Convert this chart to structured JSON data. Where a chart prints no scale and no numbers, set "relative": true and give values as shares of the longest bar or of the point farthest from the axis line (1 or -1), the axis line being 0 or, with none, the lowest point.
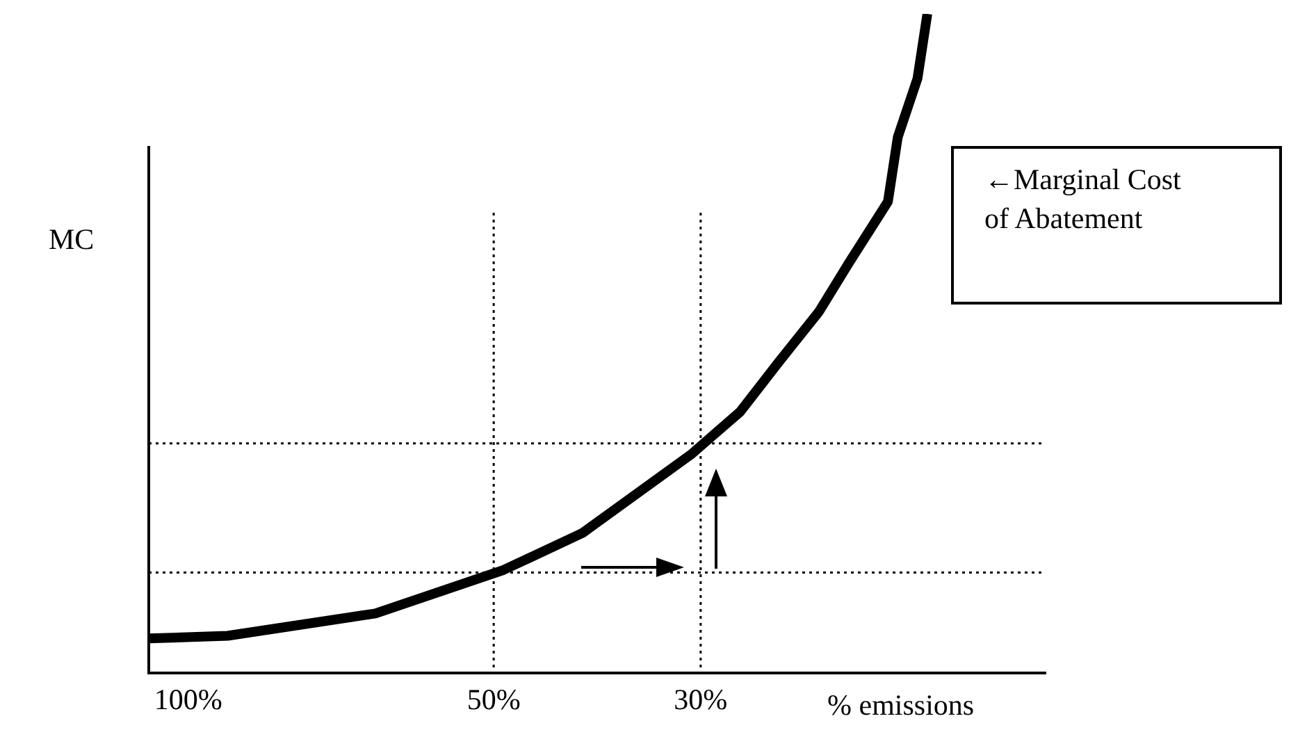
{
  "chart_data": {
    "type": "line",
    "relative": true,
    "ylabel": "MC",
    "xlabel": "% emissions",
    "annotations": [
      "←Marginal Cost of Abatement"
    ],
    "categories": [
      null,
      null,
      null,
      null,
      "100%",
      null,
      null,
      null,
      null,
      null,
      null,
      null,
      null,
      null,
      null,
      null,
      null,
      null,
      null,
      null,
      null,
      null,
      null,
      null,
      null,
      null,
      null,
      null,
      null,
      null,
      null,
      null,
      null,
      null,
      null,
      "50%",
      null,
      null,
      null,
      null,
      null,
      null,
      null,
      null,
      null,
      null,
      null,
      null,
      null,
      null,
      null,
      null,
      null,
      null,
      null,
      null,
      "30%",
      null,
      null,
      null,
      null,
      null,
      null,
      null,
      null,
      null,
      null,
      null,
      null,
      null,
      null,
      null,
      null,
      null,
      null,
      null,
      null,
      null,
      null,
      null,
      null,
      null,
      null,
      null,
      null,
      null,
      null,
      null,
      null,
      null,
      null,
      null
    ],
    "series": [
      {
        "color": "#000000",
        "values": [
          0.052,
          null,
          null,
          null,
          null,
          null,
          null,
          null,
          0.056,
          null,
          null,
          null,
          null,
          null,
          null,
          null,
          null,
          null,
          null,
          null,
          null,
          null,
          null,
          0.09,
          null,
          null,
          null,
          null,
          null,
          null,
          null,
          null,
          null,
          null,
          null,
          null,
          0.156,
          null,
          null,
          null,
          null,
          null,
          null,
          null,
          0.212,
          null,
          null,
          null,
          null,
          null,
          null,
          null,
          null,
          null,
          null,
          0.331,
          null,
          null,
          null,
          null,
          0.396,
          null,
          null,
          null,
          0.473,
          null,
          null,
          null,
          0.548,
          null,
          null,
          0.621,
          null,
          null,
          null,
          0.715,
          0.813,
          null,
          0.902,
          1,
          null,
          null,
          null,
          null,
          null,
          null,
          null,
          null,
          null,
          null,
          null,
          null
        ]
      }
    ],
    "ref_lines": [
      {
        "axis": "x",
        "value": "50%",
        "color": "#000000",
        "line_style": "dotted"
      },
      {
        "axis": "x",
        "value": "30%",
        "color": "#000000",
        "line_style": "dotted"
      },
      {
        "axis": "y",
        "value": 0.152,
        "color": "#000000",
        "line_style": "dotted"
      },
      {
        "axis": "y",
        "value": 0.348,
        "color": "#000000",
        "line_style": "dotted"
      }
    ],
    "marker": "none",
    "line_style": "solid"
  }
}
